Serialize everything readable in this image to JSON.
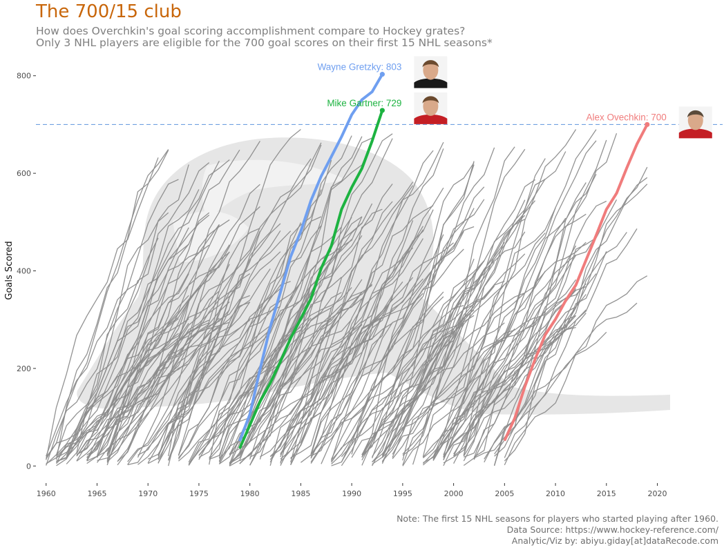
{
  "title": "The 700/15 club",
  "subtitle_lines": [
    "How does Overchkin's goal scoring accomplishment compare to Hockey grates?",
    "Only 3 NHL players are eligible for the 700 goal scores on their first 15 NHL seasons*"
  ],
  "caption_lines": [
    "Note: The first 15 NHL seasons for players who started playing after 1960.",
    "Data Source: https://www.hockey-reference.com/",
    "Analytic/Viz by: abiyu.giday[at]dataRecode.com"
  ],
  "chart_data": {
    "type": "line",
    "title": "The 700/15 club",
    "ylabel": "Goals Scored",
    "xlabel": "",
    "xlim": [
      1959,
      2026
    ],
    "ylim": [
      -35,
      835
    ],
    "xticks": [
      1960,
      1965,
      1970,
      1975,
      1980,
      1985,
      1990,
      1995,
      2000,
      2005,
      2010,
      2015,
      2020
    ],
    "yticks": [
      0,
      200,
      400,
      600,
      800
    ],
    "grid": false,
    "reference_line": {
      "y": 700,
      "style": "dashed",
      "color": "#6f9fe0"
    },
    "highlight_series": [
      {
        "name": "Wayne Gretzky",
        "label": "Wayne Gretzky: 803",
        "color": "#6f9ff0",
        "x": [
          1979,
          1980,
          1981,
          1982,
          1983,
          1984,
          1985,
          1986,
          1987,
          1988,
          1989,
          1990,
          1991,
          1992,
          1993
        ],
        "y": [
          51,
          106,
          198,
          285,
          356,
          429,
          481,
          544,
          594,
          634,
          675,
          720,
          751,
          767,
          803
        ]
      },
      {
        "name": "Mike Gartner",
        "label": "Mike Gartner: 729",
        "color": "#1db341",
        "x": [
          1979,
          1980,
          1981,
          1982,
          1983,
          1984,
          1985,
          1986,
          1987,
          1988,
          1989,
          1990,
          1991,
          1992,
          1993
        ],
        "y": [
          36,
          84,
          132,
          170,
          214,
          262,
          302,
          343,
          405,
          451,
          526,
          571,
          610,
          666,
          729
        ]
      },
      {
        "name": "Alex Ovechkin",
        "label": "Alex Ovechkin: 700",
        "color": "#f07c7c",
        "x": [
          2005,
          2006,
          2007,
          2008,
          2009,
          2010,
          2011,
          2012,
          2013,
          2014,
          2015,
          2016,
          2017,
          2018,
          2019
        ],
        "y": [
          52,
          98,
          163,
          219,
          269,
          301,
          339,
          371,
          422,
          473,
          526,
          559,
          611,
          660,
          700
        ]
      }
    ],
    "background_series": {
      "color": "#8c8c8c",
      "description_count": 220,
      "first_season_range": [
        1960,
        2005
      ],
      "seasons_each": 15,
      "final_goals_range": [
        270,
        690
      ]
    }
  }
}
